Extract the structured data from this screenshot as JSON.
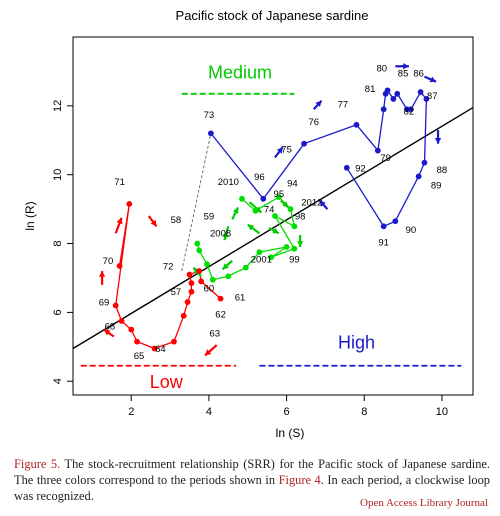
{
  "chart_data": {
    "type": "scatter",
    "title": "Pacific stock of Japanese sardine",
    "xlabel": "ln (S)",
    "ylabel": "ln (R)",
    "xlim": [
      0.5,
      10.8
    ],
    "ylim": [
      3.6,
      14.0
    ],
    "xticks": [
      2,
      4,
      6,
      8,
      10
    ],
    "yticks": [
      4,
      6,
      8,
      10,
      12
    ],
    "grid": false,
    "regression_line": {
      "x": [
        0.5,
        10.8
      ],
      "y": [
        4.95,
        11.95
      ]
    },
    "connector_dashed": {
      "x": [
        3.3,
        4.05
      ],
      "y": [
        7.2,
        11.2
      ]
    },
    "series": [
      {
        "period": "Low",
        "color": "#ff0000",
        "x": [
          1.7,
          1.95,
          1.6,
          1.75,
          2.0,
          2.15,
          2.6,
          3.1,
          3.35,
          3.45,
          3.55,
          3.55,
          3.5,
          3.75,
          3.8,
          4.3
        ],
        "y": [
          7.35,
          9.15,
          6.2,
          5.75,
          5.5,
          5.15,
          4.95,
          5.15,
          5.9,
          6.3,
          6.6,
          6.85,
          7.1,
          7.2,
          6.9,
          6.4
        ],
        "labels": [
          {
            "text": "70",
            "x": 1.4,
            "y": 7.4
          },
          {
            "text": "71",
            "x": 1.7,
            "y": 9.7
          },
          {
            "text": "69",
            "x": 1.3,
            "y": 6.2
          },
          {
            "text": "68",
            "x": 1.45,
            "y": 5.5
          },
          {
            "text": "65",
            "x": 2.2,
            "y": 4.65
          },
          {
            "text": "64",
            "x": 2.75,
            "y": 4.85
          },
          {
            "text": "63",
            "x": 4.15,
            "y": 5.3
          },
          {
            "text": "62",
            "x": 4.3,
            "y": 5.85
          },
          {
            "text": "61",
            "x": 4.8,
            "y": 6.35
          },
          {
            "text": "60",
            "x": 4.0,
            "y": 6.6
          },
          {
            "text": "57",
            "x": 3.15,
            "y": 6.5
          },
          {
            "text": "72",
            "x": 2.95,
            "y": 7.25
          },
          {
            "text": "58",
            "x": 3.15,
            "y": 8.6
          },
          {
            "text": "59",
            "x": 4.0,
            "y": 8.7
          }
        ]
      },
      {
        "period": "Medium",
        "color": "#00dd00",
        "x": [
          4.85,
          5.2,
          5.8,
          6.1,
          6.2,
          5.7,
          6.2,
          5.6,
          6.0,
          5.3,
          4.95,
          4.5,
          4.1,
          3.95,
          3.75,
          3.7
        ],
        "y": [
          9.3,
          8.95,
          9.35,
          9.0,
          8.5,
          8.8,
          7.85,
          7.6,
          7.9,
          7.75,
          7.3,
          7.05,
          6.95,
          7.4,
          7.8,
          8.0
        ],
        "labels": [
          {
            "text": "2010",
            "x": 4.5,
            "y": 9.7
          },
          {
            "text": "94",
            "x": 6.15,
            "y": 9.65
          },
          {
            "text": "95",
            "x": 5.8,
            "y": 9.35
          },
          {
            "text": "74",
            "x": 5.55,
            "y": 8.9
          },
          {
            "text": "2012",
            "x": 6.65,
            "y": 9.1
          },
          {
            "text": "98",
            "x": 6.35,
            "y": 8.7
          },
          {
            "text": "2008",
            "x": 4.3,
            "y": 8.2
          },
          {
            "text": "2001",
            "x": 5.35,
            "y": 7.45
          },
          {
            "text": "99",
            "x": 6.2,
            "y": 7.45
          }
        ]
      },
      {
        "period": "High",
        "color": "#1a1acc",
        "x": [
          4.05,
          5.4,
          6.45,
          7.8,
          8.35,
          8.5,
          8.55,
          8.6,
          8.75,
          8.85,
          9.1,
          9.2,
          9.45,
          9.6,
          9.55,
          9.4,
          8.8,
          8.5,
          7.55
        ],
        "y": [
          11.2,
          9.3,
          10.9,
          11.45,
          10.7,
          11.9,
          12.35,
          12.45,
          12.2,
          12.35,
          11.9,
          11.9,
          12.4,
          12.2,
          10.35,
          9.95,
          8.65,
          8.5,
          10.2
        ],
        "labels": [
          {
            "text": "73",
            "x": 4.0,
            "y": 11.65
          },
          {
            "text": "96",
            "x": 5.3,
            "y": 9.85
          },
          {
            "text": "75",
            "x": 6.0,
            "y": 10.65
          },
          {
            "text": "76",
            "x": 6.7,
            "y": 11.45
          },
          {
            "text": "77",
            "x": 7.45,
            "y": 11.95
          },
          {
            "text": "80",
            "x": 8.45,
            "y": 13.0
          },
          {
            "text": "85",
            "x": 9.0,
            "y": 12.85
          },
          {
            "text": "86",
            "x": 9.4,
            "y": 12.85
          },
          {
            "text": "81",
            "x": 8.15,
            "y": 12.4
          },
          {
            "text": "82",
            "x": 9.15,
            "y": 11.75
          },
          {
            "text": "87",
            "x": 9.75,
            "y": 12.2
          },
          {
            "text": "79",
            "x": 8.55,
            "y": 10.4
          },
          {
            "text": "92",
            "x": 7.9,
            "y": 10.1
          },
          {
            "text": "88",
            "x": 10.0,
            "y": 10.05
          },
          {
            "text": "89",
            "x": 9.85,
            "y": 9.6
          },
          {
            "text": "90",
            "x": 9.2,
            "y": 8.3
          },
          {
            "text": "91",
            "x": 8.5,
            "y": 7.95
          }
        ]
      }
    ],
    "period_labels": [
      {
        "text": "Low",
        "color": "#ff0000",
        "x": 2.9,
        "y": 3.8,
        "line": [
          0.7,
          4.7,
          4.45
        ]
      },
      {
        "text": "Medium",
        "color": "#00cc00",
        "x": 4.8,
        "y": 12.8,
        "line": [
          3.3,
          6.2,
          12.35
        ]
      },
      {
        "text": "High",
        "color": "#1a1acc",
        "x": 7.8,
        "y": 4.95,
        "line": [
          5.3,
          10.5,
          4.45
        ]
      }
    ],
    "arrows": [
      {
        "color": "#ff0000",
        "x1": 1.6,
        "y1": 8.3,
        "x2": 1.75,
        "y2": 8.75
      },
      {
        "color": "#ff0000",
        "x1": 2.45,
        "y1": 8.8,
        "x2": 2.65,
        "y2": 8.5
      },
      {
        "color": "#ff0000",
        "x1": 1.25,
        "y1": 6.8,
        "x2": 1.25,
        "y2": 7.2
      },
      {
        "color": "#ff0000",
        "x1": 1.55,
        "y1": 5.3,
        "x2": 1.3,
        "y2": 5.5
      },
      {
        "color": "#ff0000",
        "x1": 4.2,
        "y1": 5.05,
        "x2": 3.9,
        "y2": 4.75
      },
      {
        "color": "#00cc00",
        "x1": 4.5,
        "y1": 8.5,
        "x2": 4.4,
        "y2": 8.1
      },
      {
        "color": "#00cc00",
        "x1": 4.6,
        "y1": 8.7,
        "x2": 4.75,
        "y2": 9.05
      },
      {
        "color": "#00cc00",
        "x1": 5.05,
        "y1": 9.2,
        "x2": 5.35,
        "y2": 8.9
      },
      {
        "color": "#00cc00",
        "x1": 5.85,
        "y1": 9.25,
        "x2": 6.05,
        "y2": 9.05
      },
      {
        "color": "#00cc00",
        "x1": 6.35,
        "y1": 8.25,
        "x2": 6.35,
        "y2": 7.9
      },
      {
        "color": "#00cc00",
        "x1": 5.55,
        "y1": 8.45,
        "x2": 5.8,
        "y2": 8.3
      },
      {
        "color": "#00cc00",
        "x1": 5.3,
        "y1": 8.3,
        "x2": 5.0,
        "y2": 8.55
      },
      {
        "color": "#00cc00",
        "x1": 4.6,
        "y1": 7.5,
        "x2": 4.35,
        "y2": 7.25
      },
      {
        "color": "#00cc00",
        "x1": 3.8,
        "y1": 7.05,
        "x2": 3.6,
        "y2": 7.3
      },
      {
        "color": "#1a1acc",
        "x1": 6.7,
        "y1": 11.9,
        "x2": 6.9,
        "y2": 12.15
      },
      {
        "color": "#1a1acc",
        "x1": 5.7,
        "y1": 10.5,
        "x2": 5.9,
        "y2": 10.8
      },
      {
        "color": "#1a1acc",
        "x1": 8.8,
        "y1": 13.15,
        "x2": 9.15,
        "y2": 13.15
      },
      {
        "color": "#1a1acc",
        "x1": 9.55,
        "y1": 12.85,
        "x2": 9.85,
        "y2": 12.7
      },
      {
        "color": "#1a1acc",
        "x1": 9.9,
        "y1": 11.3,
        "x2": 9.9,
        "y2": 10.9
      },
      {
        "color": "#1a1acc",
        "x1": 7.05,
        "y1": 9.0,
        "x2": 6.85,
        "y2": 9.25
      }
    ]
  },
  "caption": {
    "figure_label": "Figure 5.",
    "text_before_ref": " The stock-recruitment relationship (SRR) for the Pacific stock of Japanese sardine. The three colors correspond to the periods shown in ",
    "ref": "Figure 4",
    "text_after_ref": ". In each period, a clockwise loop was recognized."
  },
  "journal": "Open Access Library Journal"
}
